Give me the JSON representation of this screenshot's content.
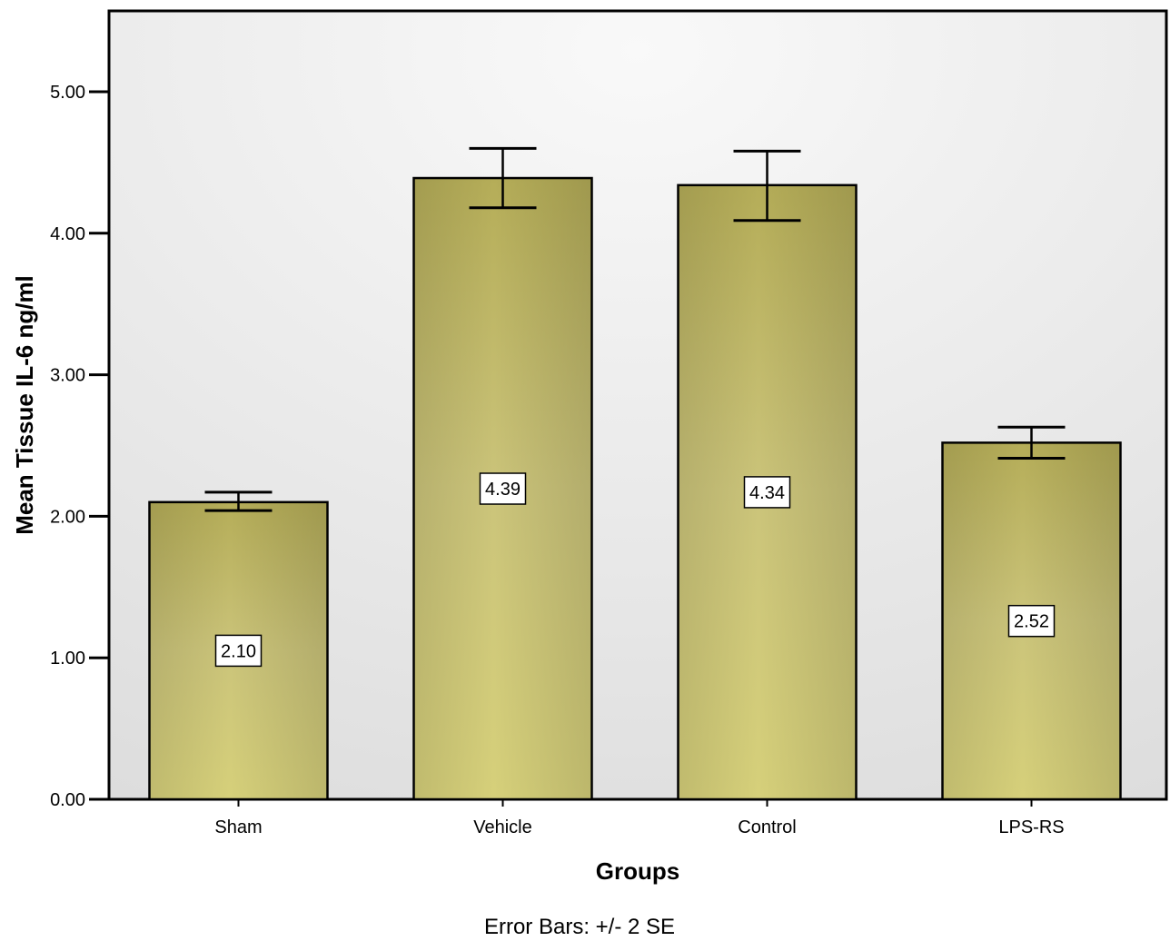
{
  "chart_data": {
    "type": "bar",
    "title": "",
    "xlabel": "Groups",
    "ylabel": "Mean Tissue IL-6 ng/ml",
    "footnote": "Error Bars: +/- 2 SE",
    "categories": [
      "Sham",
      "Vehicle",
      "Control",
      "LPS-RS"
    ],
    "values": [
      2.1,
      4.39,
      4.34,
      2.52
    ],
    "value_labels": [
      "2.10",
      "4.39",
      "4.34",
      "2.52"
    ],
    "error_low": [
      2.04,
      4.18,
      4.09,
      2.41
    ],
    "error_high": [
      2.17,
      4.6,
      4.58,
      2.63
    ],
    "ylim": [
      0,
      5.5
    ],
    "yticks": [
      0,
      1,
      2,
      3,
      4,
      5
    ],
    "ytick_labels": [
      "0.00",
      "1.00",
      "2.00",
      "3.00",
      "4.00",
      "5.00"
    ],
    "grid": false,
    "legend": "none",
    "bar_color": "#c8c070",
    "plot_background": "#ececec"
  }
}
